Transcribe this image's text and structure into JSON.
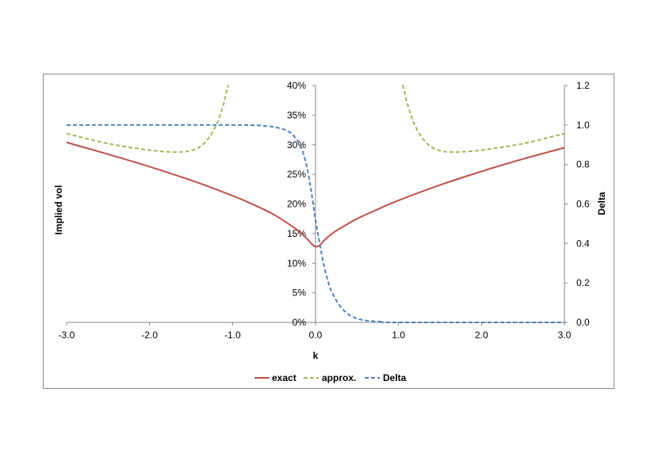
{
  "chart_data": {
    "type": "line",
    "title": "",
    "xlabel": "k",
    "ylabel": "Implied vol",
    "y2label": "Delta",
    "xlim": [
      -3.0,
      3.0
    ],
    "ylim": [
      0,
      0.4
    ],
    "y2lim": [
      0,
      1.2
    ],
    "x_ticks": [
      "-3.0",
      "-2.0",
      "-1.0",
      "0.0",
      "1.0",
      "2.0",
      "3.0"
    ],
    "y_ticks": [
      "0%",
      "5%",
      "10%",
      "15%",
      "20%",
      "25%",
      "30%",
      "35%",
      "40%"
    ],
    "y2_ticks": [
      "0.0",
      "0.2",
      "0.4",
      "0.6",
      "0.8",
      "1.0",
      "1.2"
    ],
    "grid": false,
    "legend_position": "bottom",
    "colors": {
      "exact": "#c0504d",
      "approx": "#9bbb59",
      "delta": "#4f81bd"
    },
    "series": [
      {
        "name": "exact",
        "axis": "left",
        "style": "solid",
        "x": [
          -3.0,
          -2.5,
          -2.0,
          -1.5,
          -1.0,
          -0.75,
          -0.5,
          -0.3,
          -0.2,
          -0.1,
          -0.05,
          0.0,
          0.05,
          0.1,
          0.2,
          0.3,
          0.5,
          0.75,
          1.0,
          1.5,
          2.0,
          2.5,
          3.0
        ],
        "values": [
          0.304,
          0.284,
          0.263,
          0.24,
          0.214,
          0.199,
          0.182,
          0.164,
          0.154,
          0.141,
          0.133,
          0.128,
          0.13,
          0.138,
          0.15,
          0.159,
          0.175,
          0.191,
          0.206,
          0.232,
          0.255,
          0.276,
          0.295
        ]
      },
      {
        "name": "approx.",
        "axis": "left",
        "style": "dashed",
        "segments": [
          {
            "x": [
              -3.0,
              -2.5,
              -2.0,
              -1.75,
              -1.6,
              -1.5,
              -1.4,
              -1.3,
              -1.2,
              -1.15,
              -1.1,
              -1.07,
              -1.05
            ],
            "values": [
              0.319,
              0.302,
              0.291,
              0.288,
              0.288,
              0.29,
              0.296,
              0.309,
              0.332,
              0.35,
              0.373,
              0.391,
              0.401
            ]
          },
          {
            "x": [
              1.05,
              1.07,
              1.1,
              1.15,
              1.2,
              1.3,
              1.4,
              1.5,
              1.6,
              1.75,
              2.0,
              2.5,
              3.0
            ],
            "values": [
              0.401,
              0.391,
              0.373,
              0.35,
              0.332,
              0.309,
              0.296,
              0.29,
              0.288,
              0.288,
              0.291,
              0.302,
              0.319
            ]
          }
        ]
      },
      {
        "name": "Delta",
        "axis": "right",
        "style": "dashed",
        "x": [
          -3.0,
          -1.0,
          -0.6,
          -0.4,
          -0.3,
          -0.2,
          -0.15,
          -0.1,
          -0.05,
          0.0,
          0.05,
          0.1,
          0.15,
          0.2,
          0.3,
          0.4,
          0.5,
          0.6,
          0.8,
          1.0,
          3.0
        ],
        "values": [
          1.0,
          1.0,
          0.995,
          0.98,
          0.96,
          0.91,
          0.86,
          0.78,
          0.66,
          0.52,
          0.4,
          0.29,
          0.21,
          0.15,
          0.08,
          0.04,
          0.02,
          0.01,
          0.003,
          0.0,
          0.0
        ]
      }
    ]
  }
}
